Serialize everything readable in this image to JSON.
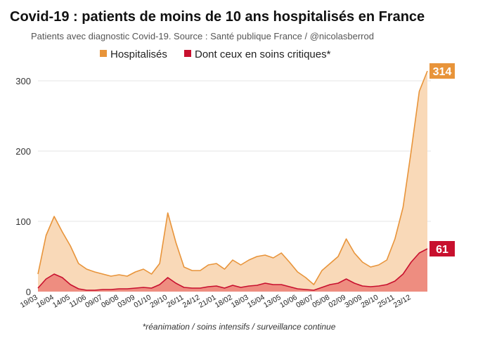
{
  "colors": {
    "hospitalized_line": "#e8943a",
    "hospitalized_fill": "#f9d9b8",
    "critical_line": "#c8102e",
    "critical_fill": "#ee8d80",
    "grid": "#e6e6e6"
  },
  "chart_data": {
    "type": "area",
    "title": "Covid-19 : patients de moins de 10 ans hospitalisés en France",
    "subtitle": "Patients avec diagnostic Covid-19. Source : Santé publique France / @nicolasberrod",
    "footnote": "*réanimation / soins intensifs / surveillance continue",
    "ylim": [
      0,
      320
    ],
    "yticks": [
      0,
      100,
      200,
      300
    ],
    "grid": true,
    "legend_position": "top-center",
    "x_tick_labels": [
      "19/03",
      "16/04",
      "14/05",
      "11/06",
      "09/07",
      "06/08",
      "03/09",
      "01/10",
      "29/10",
      "26/11",
      "24/12",
      "21/01",
      "18/02",
      "18/03",
      "15/04",
      "13/05",
      "10/06",
      "08/07",
      "05/08",
      "02/09",
      "30/09",
      "28/10",
      "25/11",
      "23/12"
    ],
    "x": [
      "19/03",
      "02/04",
      "16/04",
      "30/04",
      "14/05",
      "28/05",
      "11/06",
      "25/06",
      "09/07",
      "23/07",
      "06/08",
      "20/08",
      "03/09",
      "17/09",
      "01/10",
      "15/10",
      "29/10",
      "12/11",
      "26/11",
      "10/12",
      "24/12",
      "07/01",
      "21/01",
      "04/02",
      "18/02",
      "04/03",
      "18/03",
      "01/04",
      "15/04",
      "29/04",
      "13/05",
      "27/05",
      "10/06",
      "24/06",
      "08/07",
      "22/07",
      "05/08",
      "19/08",
      "02/09",
      "16/09",
      "30/09",
      "14/10",
      "28/10",
      "11/11",
      "25/11",
      "09/12",
      "23/12",
      "28/12",
      "31/12"
    ],
    "series": [
      {
        "name": "Hospitalisés",
        "values": [
          25,
          80,
          107,
          85,
          65,
          40,
          32,
          28,
          25,
          22,
          24,
          22,
          28,
          32,
          25,
          40,
          112,
          70,
          35,
          30,
          30,
          38,
          40,
          32,
          45,
          38,
          45,
          50,
          52,
          48,
          55,
          42,
          28,
          20,
          10,
          30,
          40,
          50,
          75,
          55,
          42,
          35,
          38,
          45,
          75,
          120,
          200,
          285,
          314
        ],
        "end_label": "314"
      },
      {
        "name": "Dont ceux en soins critiques*",
        "values": [
          5,
          18,
          25,
          20,
          10,
          4,
          2,
          2,
          3,
          3,
          4,
          4,
          5,
          6,
          5,
          10,
          20,
          12,
          6,
          5,
          5,
          7,
          8,
          5,
          9,
          6,
          8,
          9,
          12,
          10,
          10,
          7,
          4,
          3,
          2,
          6,
          10,
          12,
          18,
          12,
          8,
          7,
          8,
          10,
          15,
          25,
          42,
          55,
          61
        ],
        "end_label": "61"
      }
    ]
  }
}
